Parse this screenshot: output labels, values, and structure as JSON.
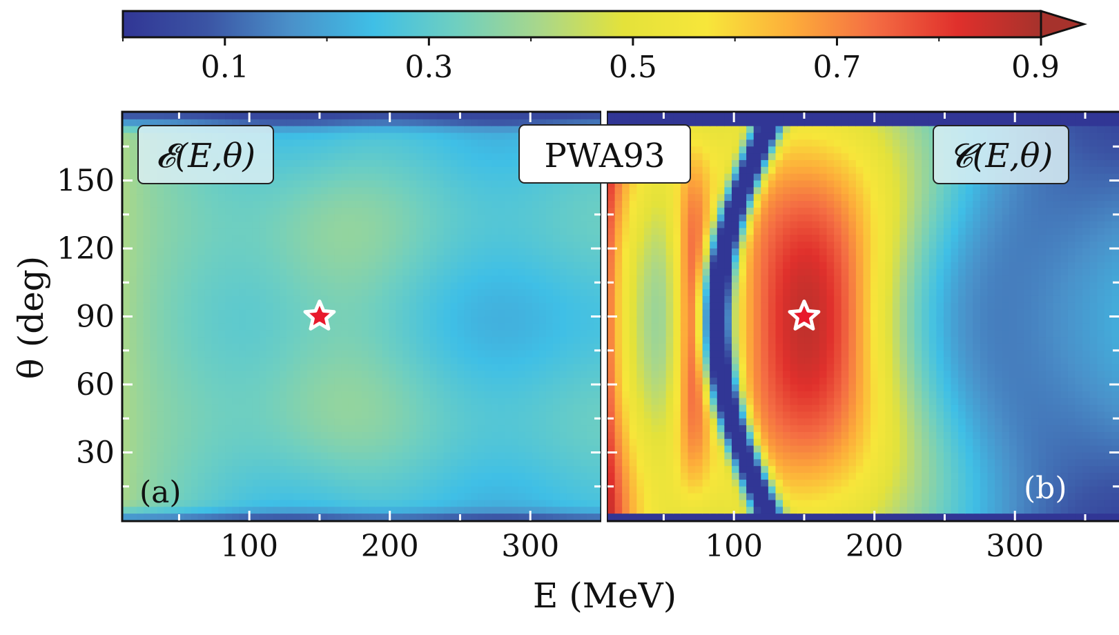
{
  "chart_data": {
    "type": "heatmap",
    "title": "PWA93",
    "colorbar": {
      "ticks": [
        0.1,
        0.3,
        0.5,
        0.7,
        0.9
      ],
      "tick_labels": [
        "0.1",
        "0.3",
        "0.5",
        "0.7",
        "0.9"
      ],
      "range": [
        0.0,
        0.9
      ],
      "extend": "max",
      "colormap": [
        "#313695",
        "#3b54a4",
        "#4a90c9",
        "#3fbfe6",
        "#6fcfc0",
        "#a9d78a",
        "#e4e23a",
        "#f7e63a",
        "#fdae3a",
        "#f46d43",
        "#e0302c",
        "#a6322c"
      ]
    },
    "xlabel": "E (MeV)",
    "ylabel": "θ (deg)",
    "xlim": [
      10,
      350
    ],
    "ylim": [
      0,
      180
    ],
    "x_ticks": [
      100,
      200,
      300
    ],
    "y_ticks": [
      30,
      60,
      90,
      120,
      150
    ],
    "panels": [
      {
        "id": "a",
        "panel_label": "(a)",
        "quantity_label": "𝓔(E,θ)",
        "field": "E",
        "marker": {
          "E": 150,
          "theta": 90,
          "symbol": "star"
        }
      },
      {
        "id": "b",
        "panel_label": "(b)",
        "quantity_label": "𝓒(E,θ)",
        "field": "C",
        "marker": {
          "E": 150,
          "theta": 90,
          "symbol": "star"
        }
      }
    ]
  }
}
